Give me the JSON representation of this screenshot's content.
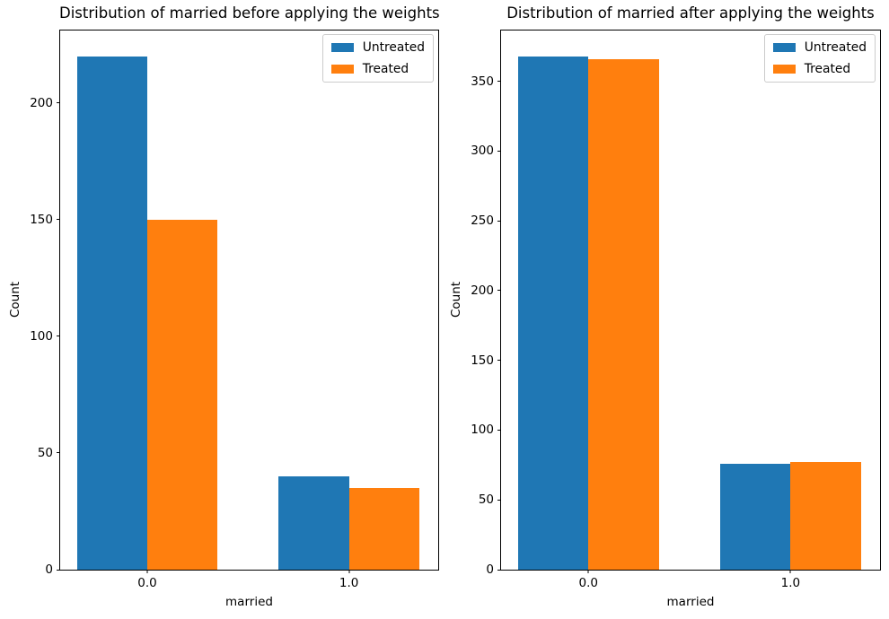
{
  "figure": {
    "background": "#ffffff",
    "text_color": "#000000",
    "axis_color": "#000000",
    "legend_border_color": "#cccccc"
  },
  "chart_data": [
    {
      "type": "bar",
      "title": "Distribution of married before applying the weights",
      "xlabel": "married",
      "ylabel": "Count",
      "categories": [
        "0.0",
        "1.0"
      ],
      "series": [
        {
          "name": "Untreated",
          "color": "#1f77b4",
          "values": [
            220,
            40
          ]
        },
        {
          "name": "Treated",
          "color": "#ff7f0e",
          "values": [
            150,
            35
          ]
        }
      ],
      "yticks": [
        0,
        50,
        100,
        150,
        200
      ],
      "ylim": [
        0,
        231
      ],
      "grid": false,
      "legend_position": "upper right"
    },
    {
      "type": "bar",
      "title": "Distribution of married after applying the weights",
      "xlabel": "married",
      "ylabel": "Count",
      "categories": [
        "0.0",
        "1.0"
      ],
      "series": [
        {
          "name": "Untreated",
          "color": "#1f77b4",
          "values": [
            368,
            76
          ]
        },
        {
          "name": "Treated",
          "color": "#ff7f0e",
          "values": [
            366,
            77
          ]
        }
      ],
      "yticks": [
        0,
        50,
        100,
        150,
        200,
        250,
        300,
        350
      ],
      "ylim": [
        0,
        386.4
      ],
      "grid": false,
      "legend_position": "upper right"
    }
  ]
}
